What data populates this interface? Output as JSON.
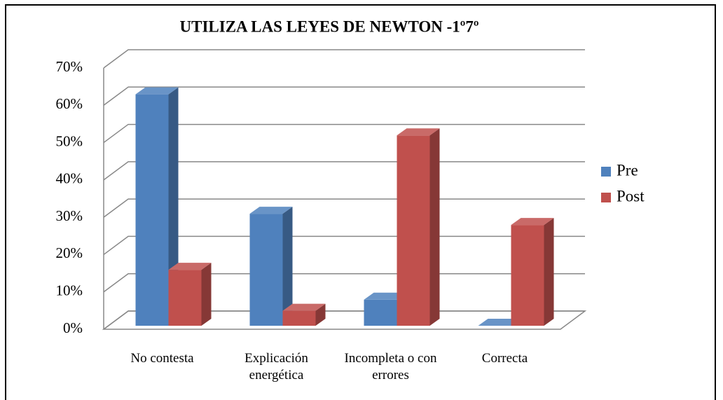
{
  "chart_data": {
    "type": "bar3d",
    "title": "UTILIZA LAS LEYES DE NEWTON -1º7º",
    "categories": [
      "No contesta",
      "Explicación energética",
      "Incompleta o con errores",
      "Correcta"
    ],
    "series": [
      {
        "name": "Pre",
        "color": "#4f81bd",
        "values": [
          62,
          30,
          7,
          0
        ]
      },
      {
        "name": "Post",
        "color": "#c0504d",
        "values": [
          15,
          4,
          51,
          27
        ]
      }
    ],
    "ylim": [
      0,
      70
    ],
    "yticks": [
      {
        "value": 0,
        "label": "0%"
      },
      {
        "value": 10,
        "label": "10%"
      },
      {
        "value": 20,
        "label": "20%"
      },
      {
        "value": 30,
        "label": "30%"
      },
      {
        "value": 40,
        "label": "40%"
      },
      {
        "value": 50,
        "label": "50%"
      },
      {
        "value": 60,
        "label": "60%"
      },
      {
        "value": 70,
        "label": "70%"
      }
    ],
    "grid": true,
    "legend": "right"
  }
}
